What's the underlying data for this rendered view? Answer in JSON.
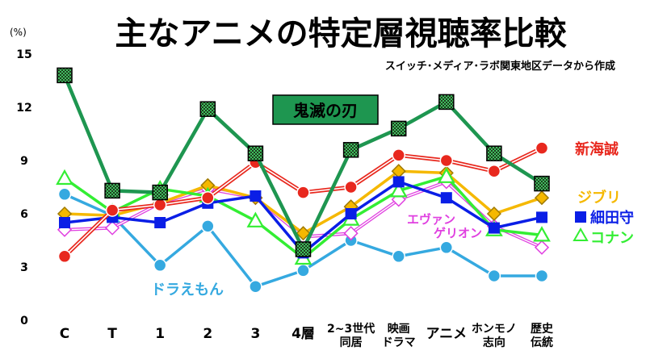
{
  "chart_data": {
    "type": "line",
    "title": "主なアニメの特定層視聴率比較",
    "subtitle": "スイッチ･メディア･ラボ関東地区データから作成",
    "y_unit": "(%)",
    "ylim": [
      0,
      15
    ],
    "yticks": [
      0,
      3,
      6,
      9,
      12,
      15
    ],
    "grid": false,
    "categories": [
      [
        "C"
      ],
      [
        "T"
      ],
      [
        "1"
      ],
      [
        "2"
      ],
      [
        "3"
      ],
      [
        "4層"
      ],
      [
        "2~3世代",
        "同居"
      ],
      [
        "映画",
        "ドラマ"
      ],
      [
        "アニメ"
      ],
      [
        "ホンモノ",
        "志向"
      ],
      [
        "歴史",
        "伝統"
      ]
    ],
    "series": [
      {
        "name": "ドラえもん",
        "color": "#35a9e0",
        "marker": "circle",
        "values": [
          7.1,
          5.9,
          3.1,
          5.3,
          1.9,
          2.8,
          4.5,
          3.6,
          4.1,
          2.5,
          2.5
        ]
      },
      {
        "name": "エヴァンゲリオン",
        "color": "#e040e0",
        "marker": "diamond",
        "values": [
          5.1,
          5.2,
          6.6,
          7.4,
          6.9,
          4.7,
          4.9,
          6.8,
          7.8,
          5.3,
          4.1
        ]
      },
      {
        "name": "ジブリ",
        "color": "#f5b800",
        "marker": "diamond",
        "values": [
          6.0,
          5.9,
          6.6,
          7.6,
          6.9,
          4.9,
          6.4,
          8.4,
          8.3,
          6.0,
          6.9
        ]
      },
      {
        "name": "コナン",
        "color": "#33ee33",
        "marker": "triangle",
        "values": [
          8.0,
          6.1,
          7.4,
          7.0,
          5.6,
          3.5,
          5.7,
          7.3,
          8.1,
          5.1,
          4.8
        ]
      },
      {
        "name": "細田守",
        "color": "#0a1ee6",
        "marker": "square",
        "values": [
          5.5,
          5.8,
          5.5,
          6.6,
          7.0,
          3.8,
          6.0,
          7.8,
          6.9,
          5.2,
          5.8
        ]
      },
      {
        "name": "新海誠",
        "color": "#e8281e",
        "marker": "circle",
        "values": [
          3.6,
          6.2,
          6.5,
          6.9,
          8.9,
          7.2,
          7.5,
          9.3,
          9.0,
          8.4,
          9.7
        ]
      },
      {
        "name": "鬼滅の刃",
        "color": "#1e9650",
        "marker": "checker",
        "values": [
          13.8,
          7.3,
          7.2,
          11.9,
          9.4,
          4.0,
          9.6,
          10.8,
          12.3,
          9.4,
          7.7
        ]
      }
    ],
    "labels": {
      "kimetsu": "鬼滅の刃",
      "shinkai": "新海誠",
      "ghibli": "ジブリ",
      "hosoda": "細田守",
      "conan": "コナン",
      "eva_1": "エヴァン",
      "eva_2": "ゲリオン",
      "doraemon": "ドラえもん"
    }
  }
}
